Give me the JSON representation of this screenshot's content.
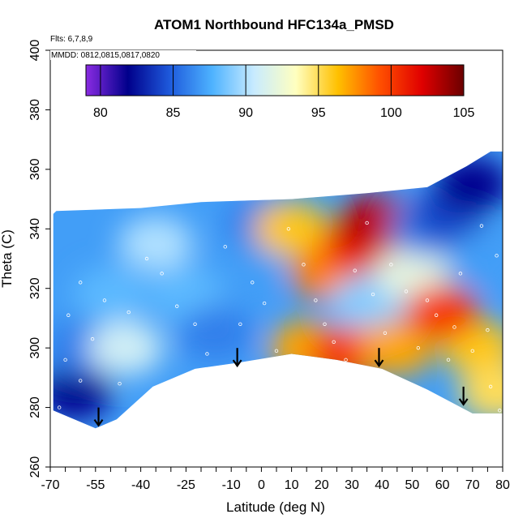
{
  "chart_data": {
    "type": "heatmap",
    "title": "ATOM1 Northbound HFC134a_PMSD",
    "annotations": [
      "Flts: 6,7,8,9",
      "MMDD: 0812,0815,0817,0820"
    ],
    "xlabel": "Latitude (deg N)",
    "ylabel": "Theta (C)",
    "xlim": [
      -70,
      80
    ],
    "ylim": [
      260,
      400
    ],
    "xticks": [
      -70,
      -55,
      -40,
      -25,
      -10,
      0,
      10,
      20,
      30,
      40,
      50,
      60,
      70,
      80
    ],
    "yticks": [
      260,
      280,
      300,
      320,
      340,
      360,
      380,
      400
    ],
    "colorbar": {
      "range": [
        79,
        105
      ],
      "ticks": [
        80,
        85,
        90,
        95,
        100,
        105
      ],
      "colors": [
        "#8a2be2",
        "#00008b",
        "#1e5adc",
        "#4db2ff",
        "#c8ebff",
        "#ffffc0",
        "#ffc000",
        "#ff5000",
        "#e00000",
        "#6b0000"
      ]
    },
    "arrows_latitude": [
      -54,
      -8,
      39,
      67
    ],
    "surface_outline": [
      [
        -55,
        273
      ],
      [
        -48,
        276
      ],
      [
        -36,
        287
      ],
      [
        -22,
        293
      ],
      [
        -8,
        295
      ],
      [
        10,
        298
      ],
      [
        25,
        296
      ],
      [
        40,
        293
      ],
      [
        55,
        286
      ],
      [
        70,
        278
      ],
      [
        79,
        278
      ]
    ],
    "regions": [
      {
        "lat": -62,
        "theta": 285,
        "value": 82
      },
      {
        "lat": -60,
        "theta": 300,
        "value": 86
      },
      {
        "lat": -50,
        "theta": 318,
        "value": 88
      },
      {
        "lat": -45,
        "theta": 300,
        "value": 91
      },
      {
        "lat": -35,
        "theta": 335,
        "value": 90
      },
      {
        "lat": -25,
        "theta": 318,
        "value": 88
      },
      {
        "lat": -15,
        "theta": 305,
        "value": 86
      },
      {
        "lat": -5,
        "theta": 328,
        "value": 87
      },
      {
        "lat": 0,
        "theta": 342,
        "value": 86
      },
      {
        "lat": 10,
        "theta": 340,
        "value": 96
      },
      {
        "lat": 15,
        "theta": 300,
        "value": 97
      },
      {
        "lat": 22,
        "theta": 325,
        "value": 98
      },
      {
        "lat": 32,
        "theta": 335,
        "value": 101
      },
      {
        "lat": 38,
        "theta": 342,
        "value": 103
      },
      {
        "lat": 35,
        "theta": 315,
        "value": 89
      },
      {
        "lat": 28,
        "theta": 298,
        "value": 100
      },
      {
        "lat": 45,
        "theta": 300,
        "value": 97
      },
      {
        "lat": 50,
        "theta": 325,
        "value": 92
      },
      {
        "lat": 55,
        "theta": 340,
        "value": 86
      },
      {
        "lat": 62,
        "theta": 345,
        "value": 84
      },
      {
        "lat": 70,
        "theta": 355,
        "value": 82
      },
      {
        "lat": 72,
        "theta": 300,
        "value": 96
      },
      {
        "lat": 60,
        "theta": 312,
        "value": 100
      },
      {
        "lat": 75,
        "theta": 330,
        "value": 87
      },
      {
        "lat": 78,
        "theta": 285,
        "value": 95
      }
    ],
    "sample_points": [
      [
        -67,
        280
      ],
      [
        -65,
        296
      ],
      [
        -64,
        311
      ],
      [
        -60,
        322
      ],
      [
        -60,
        289
      ],
      [
        -56,
        303
      ],
      [
        -52,
        316
      ],
      [
        -47,
        288
      ],
      [
        -44,
        312
      ],
      [
        -38,
        330
      ],
      [
        -33,
        325
      ],
      [
        -28,
        314
      ],
      [
        -22,
        308
      ],
      [
        -18,
        298
      ],
      [
        -12,
        334
      ],
      [
        -7,
        308
      ],
      [
        -3,
        322
      ],
      [
        1,
        315
      ],
      [
        5,
        299
      ],
      [
        9,
        340
      ],
      [
        14,
        328
      ],
      [
        18,
        316
      ],
      [
        21,
        308
      ],
      [
        24,
        302
      ],
      [
        28,
        296
      ],
      [
        31,
        326
      ],
      [
        35,
        342
      ],
      [
        37,
        318
      ],
      [
        41,
        305
      ],
      [
        43,
        328
      ],
      [
        48,
        319
      ],
      [
        52,
        300
      ],
      [
        55,
        316
      ],
      [
        58,
        311
      ],
      [
        62,
        296
      ],
      [
        64,
        307
      ],
      [
        66,
        325
      ],
      [
        70,
        299
      ],
      [
        73,
        341
      ],
      [
        75,
        306
      ],
      [
        76,
        287
      ],
      [
        78,
        331
      ],
      [
        79,
        279
      ]
    ]
  }
}
